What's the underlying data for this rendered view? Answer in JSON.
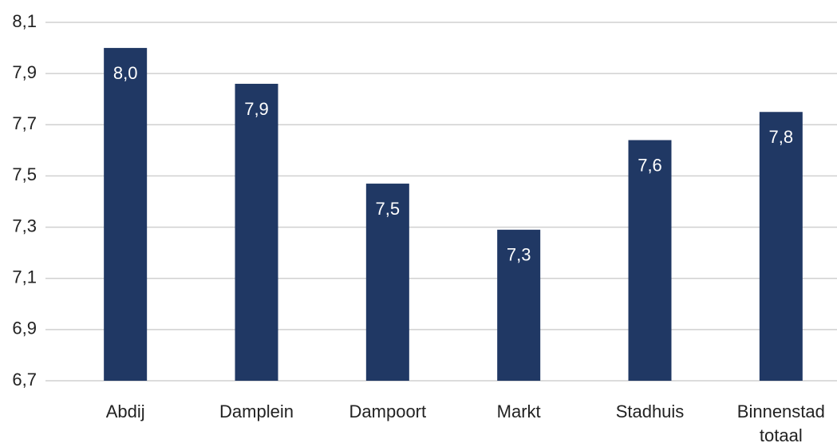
{
  "chart_data": {
    "type": "bar",
    "categories": [
      "Abdij",
      "Damplein",
      "Dampoort",
      "Markt",
      "Stadhuis",
      "Binnenstad totaal"
    ],
    "values": [
      8.0,
      7.86,
      7.47,
      7.29,
      7.64,
      7.75
    ],
    "value_labels": [
      "8,0",
      "7,9",
      "7,5",
      "7,3",
      "7,6",
      "7,8"
    ],
    "color": "#203864",
    "ylim": [
      6.7,
      8.1
    ],
    "yticks": [
      {
        "value": 6.7,
        "label": "6,7"
      },
      {
        "value": 6.9,
        "label": "6,9"
      },
      {
        "value": 7.1,
        "label": "7,1"
      },
      {
        "value": 7.3,
        "label": "7,3"
      },
      {
        "value": 7.5,
        "label": "7,5"
      },
      {
        "value": 7.7,
        "label": "7,7"
      },
      {
        "value": 7.9,
        "label": "7,9"
      },
      {
        "value": 8.1,
        "label": "8,1"
      }
    ],
    "grid": true
  }
}
